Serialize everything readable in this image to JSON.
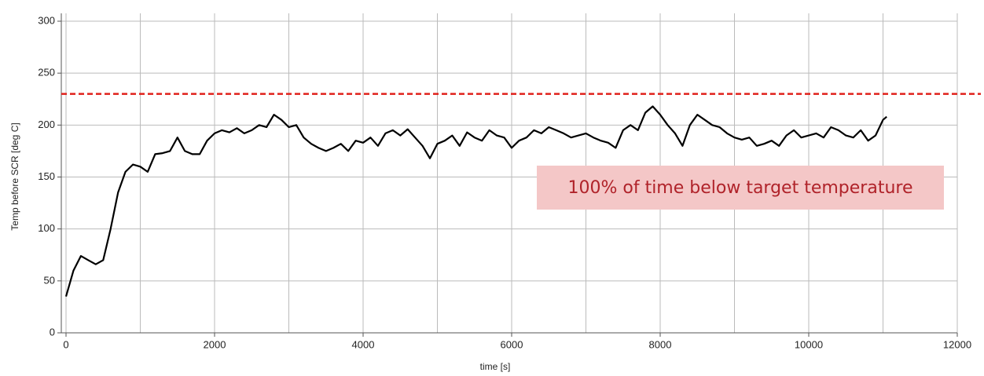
{
  "chart_data": {
    "type": "line",
    "xlabel": "time [s]",
    "ylabel": "Temp before SCR [deg C]",
    "annotation": "100% of time below target temperature",
    "target_line": {
      "value": 230,
      "color": "#e0201b"
    },
    "xlim": [
      0,
      12000
    ],
    "ylim": [
      0,
      300
    ],
    "xticks": [
      0,
      2000,
      4000,
      6000,
      8000,
      10000,
      12000
    ],
    "xgrid_minor": [
      1000,
      3000,
      5000,
      7000,
      9000,
      11000
    ],
    "yticks": [
      0,
      50,
      100,
      150,
      200,
      250,
      300
    ],
    "grid": true,
    "x": [
      0,
      100,
      200,
      300,
      400,
      500,
      600,
      700,
      800,
      900,
      1000,
      1100,
      1200,
      1300,
      1400,
      1500,
      1600,
      1700,
      1800,
      1900,
      2000,
      2100,
      2200,
      2300,
      2400,
      2500,
      2600,
      2700,
      2800,
      2900,
      3000,
      3100,
      3200,
      3300,
      3400,
      3500,
      3600,
      3700,
      3800,
      3900,
      4000,
      4100,
      4200,
      4300,
      4400,
      4500,
      4600,
      4700,
      4800,
      4900,
      5000,
      5100,
      5200,
      5300,
      5400,
      5500,
      5600,
      5700,
      5800,
      5900,
      6000,
      6100,
      6200,
      6300,
      6400,
      6500,
      6600,
      6700,
      6800,
      6900,
      7000,
      7100,
      7200,
      7300,
      7400,
      7500,
      7600,
      7700,
      7800,
      7900,
      8000,
      8100,
      8200,
      8300,
      8400,
      8500,
      8600,
      8700,
      8800,
      8900,
      9000,
      9100,
      9200,
      9300,
      9400,
      9500,
      9600,
      9700,
      9800,
      9900,
      10000,
      10100,
      10200,
      10300,
      10400,
      10500,
      10600,
      10700,
      10800,
      10900,
      11000,
      11050
    ],
    "series": [
      {
        "color": "#000000",
        "values": [
          35,
          60,
          74,
          70,
          66,
          70,
          100,
          135,
          155,
          162,
          160,
          155,
          172,
          173,
          175,
          188,
          175,
          172,
          172,
          185,
          192,
          195,
          193,
          197,
          192,
          195,
          200,
          198,
          210,
          205,
          198,
          200,
          188,
          182,
          178,
          175,
          178,
          182,
          175,
          185,
          183,
          188,
          180,
          192,
          195,
          190,
          196,
          188,
          180,
          168,
          182,
          185,
          190,
          180,
          193,
          188,
          185,
          195,
          190,
          188,
          178,
          185,
          188,
          195,
          192,
          198,
          195,
          192,
          188,
          190,
          192,
          188,
          185,
          183,
          178,
          195,
          200,
          195,
          212,
          218,
          210,
          200,
          192,
          180,
          200,
          210,
          205,
          200,
          198,
          192,
          188,
          186,
          188,
          180,
          182,
          185,
          180,
          190,
          195,
          188,
          190,
          192,
          188,
          198,
          195,
          190,
          188,
          195,
          185,
          190,
          205,
          208
        ]
      }
    ]
  }
}
